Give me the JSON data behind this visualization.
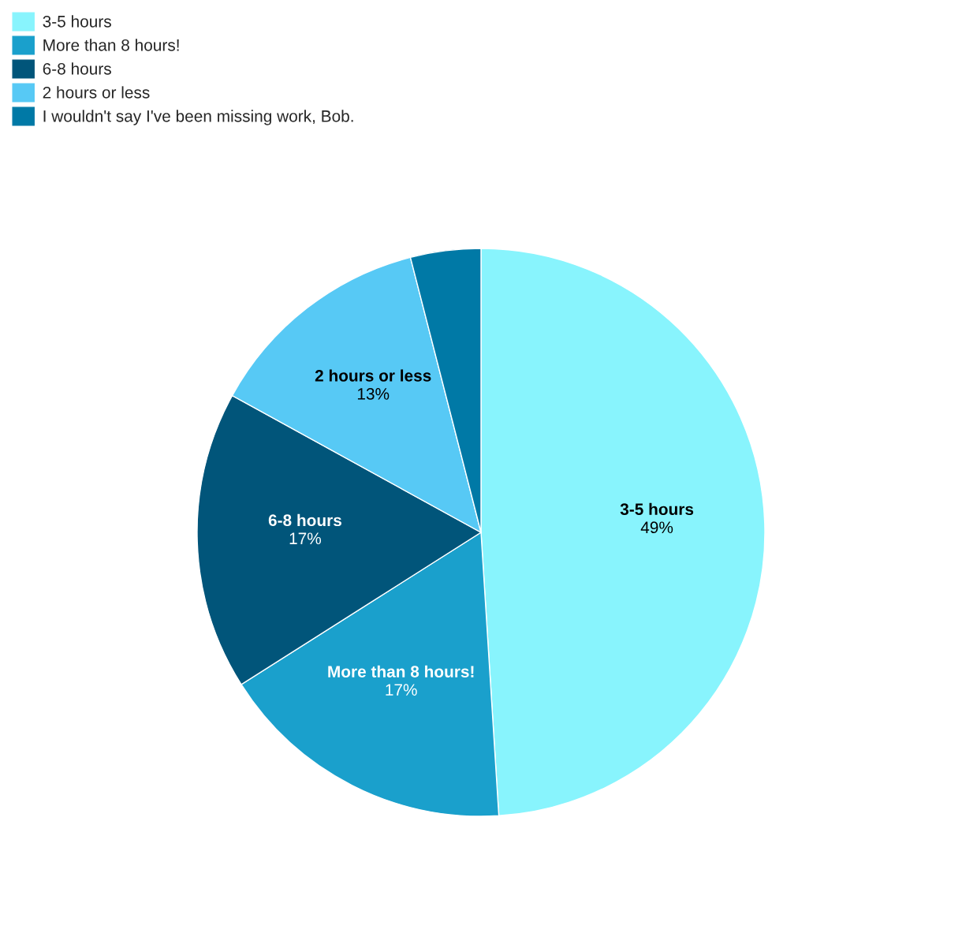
{
  "chart_data": {
    "type": "pie",
    "categories": [
      "3-5 hours",
      "More than 8 hours!",
      "6-8 hours",
      "2 hours or less",
      "I wouldn't say I've been missing work, Bob."
    ],
    "values": [
      49,
      17,
      17,
      13,
      4
    ],
    "colors": [
      "#88f4fd",
      "#1aa0cc",
      "#01557a",
      "#57c9f5",
      "#0079a6"
    ],
    "value_labels": [
      "49%",
      "17%",
      "17%",
      "13%",
      null
    ],
    "legend": "top left"
  }
}
